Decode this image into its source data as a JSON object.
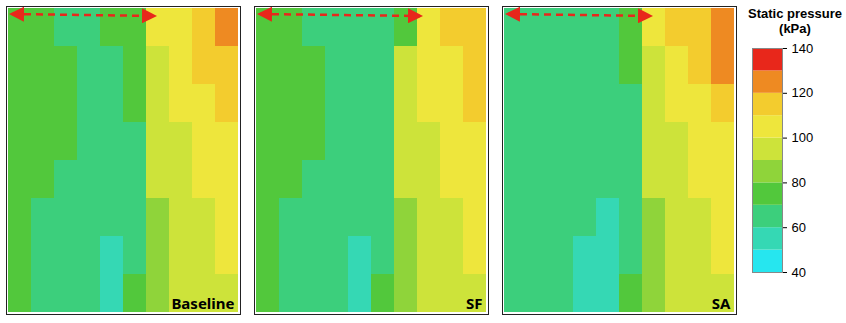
{
  "chart_data": {
    "type": "heatmap",
    "tick_labels": false,
    "panels": [
      {
        "title": "Baseline",
        "cells": [
          [
            72,
            70,
            68,
            66,
            70,
            75,
            100,
            108,
            115,
            122
          ],
          [
            74,
            72,
            70,
            68,
            66,
            72,
            98,
            104,
            110,
            118
          ],
          [
            76,
            72,
            70,
            68,
            66,
            70,
            96,
            100,
            106,
            112
          ],
          [
            74,
            72,
            70,
            68,
            66,
            68,
            92,
            98,
            102,
            106
          ],
          [
            72,
            70,
            68,
            66,
            64,
            64,
            90,
            96,
            100,
            104
          ],
          [
            72,
            68,
            66,
            64,
            60,
            62,
            88,
            94,
            98,
            102
          ],
          [
            70,
            68,
            66,
            62,
            56,
            64,
            86,
            92,
            96,
            100
          ],
          [
            70,
            68,
            64,
            60,
            58,
            70,
            84,
            90,
            94,
            96
          ]
        ]
      },
      {
        "title": "SF",
        "cells": [
          [
            72,
            70,
            68,
            66,
            64,
            68,
            72,
            104,
            112,
            118
          ],
          [
            74,
            72,
            70,
            68,
            66,
            66,
            96,
            102,
            108,
            114
          ],
          [
            76,
            72,
            70,
            68,
            66,
            64,
            94,
            100,
            104,
            110
          ],
          [
            74,
            72,
            70,
            68,
            66,
            64,
            92,
            98,
            102,
            106
          ],
          [
            72,
            70,
            68,
            66,
            64,
            62,
            90,
            96,
            100,
            104
          ],
          [
            72,
            68,
            66,
            64,
            60,
            62,
            88,
            94,
            98,
            102
          ],
          [
            70,
            68,
            66,
            62,
            56,
            66,
            86,
            92,
            96,
            100
          ],
          [
            70,
            66,
            64,
            60,
            58,
            72,
            84,
            90,
            94,
            96
          ]
        ]
      },
      {
        "title": "SA",
        "cells": [
          [
            64,
            62,
            64,
            66,
            68,
            72,
            102,
            110,
            118,
            124
          ],
          [
            66,
            64,
            62,
            64,
            66,
            70,
            98,
            106,
            112,
            120
          ],
          [
            68,
            66,
            64,
            62,
            64,
            68,
            96,
            102,
            108,
            114
          ],
          [
            66,
            64,
            62,
            64,
            62,
            66,
            92,
            98,
            104,
            108
          ],
          [
            64,
            62,
            64,
            62,
            60,
            64,
            90,
            96,
            100,
            104
          ],
          [
            66,
            64,
            62,
            60,
            58,
            62,
            88,
            94,
            98,
            102
          ],
          [
            64,
            62,
            60,
            58,
            54,
            64,
            86,
            92,
            96,
            100
          ],
          [
            66,
            64,
            62,
            58,
            56,
            70,
            84,
            90,
            94,
            96
          ]
        ]
      }
    ],
    "colorbar": {
      "label": "Static pressure\n(kPa)",
      "range": [
        40,
        140
      ],
      "ticks": [
        40,
        60,
        80,
        100,
        120,
        140
      ],
      "colors": [
        "#26e6ef",
        "#35d8b4",
        "#3ccf7c",
        "#52c83c",
        "#8fd43a",
        "#cde33a",
        "#eee63c",
        "#f3cc2e",
        "#ee8a22",
        "#e8271b"
      ]
    }
  }
}
